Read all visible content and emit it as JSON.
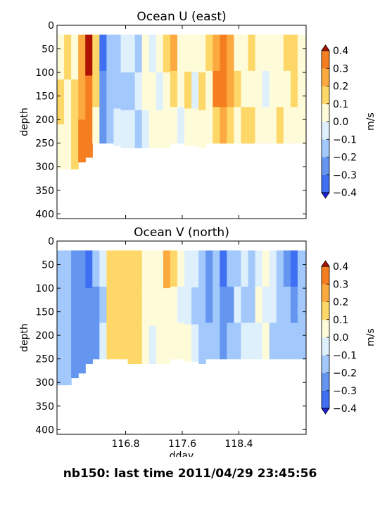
{
  "figure_title": "nb150: last time 2011/04/29 23:45:56",
  "colors": {
    "levels": [
      "#2b3aff",
      "#3f6ff2",
      "#6496f0",
      "#a3c8fb",
      "#dff0fd",
      "#fefbd9",
      "#fed769",
      "#fcaa3f",
      "#f57f20",
      "#e45409",
      "#bd1b03"
    ],
    "under": "#1f1fe0",
    "over": "#b01202"
  },
  "chart_data": [
    {
      "type": "heatmap",
      "title": "Ocean U (east)",
      "xlabel": "",
      "ylabel": "depth",
      "xlim": [
        115.83,
        119.35
      ],
      "ylim": [
        410,
        0
      ],
      "xticks": [
        116.8,
        117.6,
        118.4
      ],
      "xtick_labels": [
        "116.8",
        "117.6",
        "118.4"
      ],
      "show_xtick_labels": false,
      "yticks": [
        0,
        50,
        100,
        150,
        200,
        250,
        300,
        350,
        400
      ],
      "ytick_labels": [
        "0",
        "50",
        "100",
        "150",
        "200",
        "250",
        "300",
        "350",
        "400"
      ],
      "data_top_depth": 20,
      "colorbar": {
        "label": "m/s",
        "boundaries": [
          -0.4,
          -0.3,
          -0.2,
          -0.1,
          0.0,
          0.1,
          0.2,
          0.3,
          0.4
        ],
        "tick_labels": [
          "−0.4",
          "−0.3",
          "−0.2",
          "−0.1",
          "0.0",
          "0.1",
          "0.2",
          "0.3",
          "0.4"
        ]
      },
      "profiles": [
        {
          "x": 115.83,
          "bottom": 305,
          "values": [
            0.06,
            0.1,
            0.06
          ]
        },
        {
          "x": 115.93,
          "bottom": 305,
          "values": [
            0.12,
            0.06,
            0.04
          ]
        },
        {
          "x": 116.03,
          "bottom": 305,
          "values": [
            0.08,
            0.14,
            0.1
          ]
        },
        {
          "x": 116.13,
          "bottom": 290,
          "values": [
            0.22,
            0.26,
            0.32
          ]
        },
        {
          "x": 116.23,
          "bottom": 280,
          "values": [
            0.42,
            0.36,
            0.32
          ]
        },
        {
          "x": 116.33,
          "bottom": 250,
          "values": [
            0.18,
            0.12,
            0.08
          ]
        },
        {
          "x": 116.43,
          "bottom": 250,
          "values": [
            -0.32,
            -0.22,
            -0.26
          ]
        },
        {
          "x": 116.53,
          "bottom": 250,
          "values": [
            -0.18,
            -0.12,
            -0.14
          ]
        },
        {
          "x": 116.63,
          "bottom": 255,
          "values": [
            -0.15,
            -0.18,
            -0.1
          ]
        },
        {
          "x": 116.73,
          "bottom": 260,
          "values": [
            -0.08,
            -0.16,
            -0.04
          ]
        },
        {
          "x": 116.83,
          "bottom": 260,
          "values": [
            -0.04,
            -0.12,
            -0.02
          ]
        },
        {
          "x": 116.93,
          "bottom": 260,
          "values": [
            -0.14,
            -0.06,
            -0.14
          ]
        },
        {
          "x": 117.03,
          "bottom": 260,
          "values": [
            0.03,
            0.06,
            -0.03
          ]
        },
        {
          "x": 117.13,
          "bottom": 260,
          "values": [
            -0.04,
            0.04,
            0.08
          ]
        },
        {
          "x": 117.23,
          "bottom": 260,
          "values": [
            0.04,
            -0.02,
            0.02
          ]
        },
        {
          "x": 117.33,
          "bottom": 260,
          "values": [
            0.12,
            0.05,
            0.04
          ]
        },
        {
          "x": 117.43,
          "bottom": 250,
          "values": [
            0.22,
            0.12,
            0.06
          ]
        },
        {
          "x": 117.53,
          "bottom": 250,
          "values": [
            0.06,
            0.04,
            -0.04
          ]
        },
        {
          "x": 117.63,
          "bottom": 255,
          "values": [
            0.08,
            0.14,
            0.08
          ]
        },
        {
          "x": 117.73,
          "bottom": 255,
          "values": [
            0.02,
            -0.04,
            0.04
          ]
        },
        {
          "x": 117.83,
          "bottom": 260,
          "values": [
            0.06,
            0.1,
            0.06
          ]
        },
        {
          "x": 117.93,
          "bottom": 250,
          "values": [
            0.14,
            0.06,
            0.02
          ]
        },
        {
          "x": 118.03,
          "bottom": 250,
          "values": [
            0.28,
            0.32,
            0.18
          ]
        },
        {
          "x": 118.13,
          "bottom": 250,
          "values": [
            0.36,
            0.3,
            0.24
          ]
        },
        {
          "x": 118.23,
          "bottom": 250,
          "values": [
            0.22,
            0.26,
            0.14
          ]
        },
        {
          "x": 118.33,
          "bottom": 250,
          "values": [
            0.08,
            0.14,
            0.06
          ]
        },
        {
          "x": 118.43,
          "bottom": 250,
          "values": [
            0.02,
            0.06,
            0.1
          ]
        },
        {
          "x": 118.53,
          "bottom": 250,
          "values": [
            0.14,
            0.04,
            0.12
          ]
        },
        {
          "x": 118.63,
          "bottom": 250,
          "values": [
            0.04,
            0.02,
            0.06
          ]
        },
        {
          "x": 118.73,
          "bottom": 250,
          "values": [
            0.08,
            -0.04,
            0.04
          ]
        },
        {
          "x": 118.83,
          "bottom": 250,
          "values": [
            0.02,
            0.06,
            0.04
          ]
        },
        {
          "x": 118.93,
          "bottom": 250,
          "values": [
            0.06,
            0.08,
            0.12
          ]
        },
        {
          "x": 119.03,
          "bottom": 250,
          "values": [
            0.18,
            0.06,
            0.08
          ]
        },
        {
          "x": 119.13,
          "bottom": 250,
          "values": [
            0.12,
            0.14,
            0.06
          ]
        },
        {
          "x": 119.23,
          "bottom": 250,
          "values": [
            0.04,
            0.02,
            0.02
          ]
        }
      ]
    },
    {
      "type": "heatmap",
      "title": "Ocean V (north)",
      "xlabel": "dday",
      "ylabel": "depth",
      "xlim": [
        115.83,
        119.35
      ],
      "ylim": [
        410,
        0
      ],
      "xticks": [
        116.8,
        117.6,
        118.4
      ],
      "xtick_labels": [
        "116.8",
        "117.6",
        "118.4"
      ],
      "show_xtick_labels": true,
      "yticks": [
        0,
        50,
        100,
        150,
        200,
        250,
        300,
        350,
        400
      ],
      "ytick_labels": [
        "0",
        "50",
        "100",
        "150",
        "200",
        "250",
        "300",
        "350",
        "400"
      ],
      "data_top_depth": 20,
      "colorbar": {
        "label": "m/s",
        "boundaries": [
          -0.4,
          -0.3,
          -0.2,
          -0.1,
          0.0,
          0.1,
          0.2,
          0.3,
          0.4
        ],
        "tick_labels": [
          "−0.4",
          "−0.3",
          "−0.2",
          "−0.1",
          "0.0",
          "0.1",
          "0.2",
          "0.3",
          "0.4"
        ]
      },
      "profiles": [
        {
          "x": 115.83,
          "bottom": 305,
          "values": [
            -0.12,
            -0.16,
            -0.18
          ]
        },
        {
          "x": 115.93,
          "bottom": 305,
          "values": [
            -0.16,
            -0.18,
            -0.14
          ]
        },
        {
          "x": 116.03,
          "bottom": 290,
          "values": [
            -0.22,
            -0.26,
            -0.24
          ]
        },
        {
          "x": 116.13,
          "bottom": 280,
          "values": [
            -0.24,
            -0.22,
            -0.26
          ]
        },
        {
          "x": 116.23,
          "bottom": 260,
          "values": [
            -0.34,
            -0.26,
            -0.28
          ]
        },
        {
          "x": 116.33,
          "bottom": 250,
          "values": [
            -0.18,
            -0.26,
            -0.22
          ]
        },
        {
          "x": 116.43,
          "bottom": 250,
          "values": [
            -0.06,
            -0.14,
            -0.08
          ]
        },
        {
          "x": 116.53,
          "bottom": 250,
          "values": [
            0.16,
            0.14,
            0.12
          ]
        },
        {
          "x": 116.63,
          "bottom": 250,
          "values": [
            0.14,
            0.18,
            0.16
          ]
        },
        {
          "x": 116.73,
          "bottom": 250,
          "values": [
            0.18,
            0.12,
            0.16
          ]
        },
        {
          "x": 116.83,
          "bottom": 260,
          "values": [
            0.14,
            0.16,
            0.12
          ]
        },
        {
          "x": 116.93,
          "bottom": 260,
          "values": [
            0.16,
            0.12,
            0.14
          ]
        },
        {
          "x": 117.03,
          "bottom": 260,
          "values": [
            0.04,
            0.06,
            0.08
          ]
        },
        {
          "x": 117.13,
          "bottom": 260,
          "values": [
            0.06,
            0.02,
            -0.02
          ]
        },
        {
          "x": 117.23,
          "bottom": 260,
          "values": [
            0.04,
            0.06,
            0.02
          ]
        },
        {
          "x": 117.33,
          "bottom": 260,
          "values": [
            0.22,
            0.06,
            0.04
          ]
        },
        {
          "x": 117.43,
          "bottom": 250,
          "values": [
            0.12,
            0.02,
            0.04
          ]
        },
        {
          "x": 117.53,
          "bottom": 250,
          "values": [
            0.02,
            -0.02,
            0.04
          ]
        },
        {
          "x": 117.63,
          "bottom": 255,
          "values": [
            -0.06,
            -0.04,
            0.02
          ]
        },
        {
          "x": 117.73,
          "bottom": 255,
          "values": [
            -0.08,
            -0.12,
            -0.06
          ]
        },
        {
          "x": 117.83,
          "bottom": 260,
          "values": [
            -0.14,
            -0.16,
            -0.12
          ]
        },
        {
          "x": 117.93,
          "bottom": 250,
          "values": [
            -0.22,
            -0.24,
            -0.18
          ]
        },
        {
          "x": 118.03,
          "bottom": 250,
          "values": [
            -0.16,
            -0.14,
            -0.12
          ]
        },
        {
          "x": 118.13,
          "bottom": 250,
          "values": [
            -0.32,
            -0.26,
            -0.22
          ]
        },
        {
          "x": 118.23,
          "bottom": 250,
          "values": [
            -0.18,
            -0.26,
            -0.16
          ]
        },
        {
          "x": 118.33,
          "bottom": 250,
          "values": [
            -0.14,
            -0.08,
            -0.12
          ]
        },
        {
          "x": 118.43,
          "bottom": 250,
          "values": [
            -0.04,
            -0.12,
            -0.06
          ]
        },
        {
          "x": 118.53,
          "bottom": 250,
          "values": [
            -0.12,
            -0.14,
            -0.08
          ]
        },
        {
          "x": 118.63,
          "bottom": 250,
          "values": [
            -0.06,
            0.02,
            -0.04
          ]
        },
        {
          "x": 118.73,
          "bottom": 250,
          "values": [
            0.04,
            -0.06,
            0.02
          ]
        },
        {
          "x": 118.83,
          "bottom": 250,
          "values": [
            -0.04,
            -0.08,
            -0.12
          ]
        },
        {
          "x": 118.93,
          "bottom": 250,
          "values": [
            -0.14,
            -0.12,
            -0.16
          ]
        },
        {
          "x": 119.03,
          "bottom": 250,
          "values": [
            -0.22,
            -0.18,
            -0.16
          ]
        },
        {
          "x": 119.13,
          "bottom": 250,
          "values": [
            -0.34,
            -0.24,
            -0.18
          ]
        },
        {
          "x": 119.23,
          "bottom": 250,
          "values": [
            -0.16,
            -0.14,
            -0.12
          ]
        }
      ]
    }
  ]
}
